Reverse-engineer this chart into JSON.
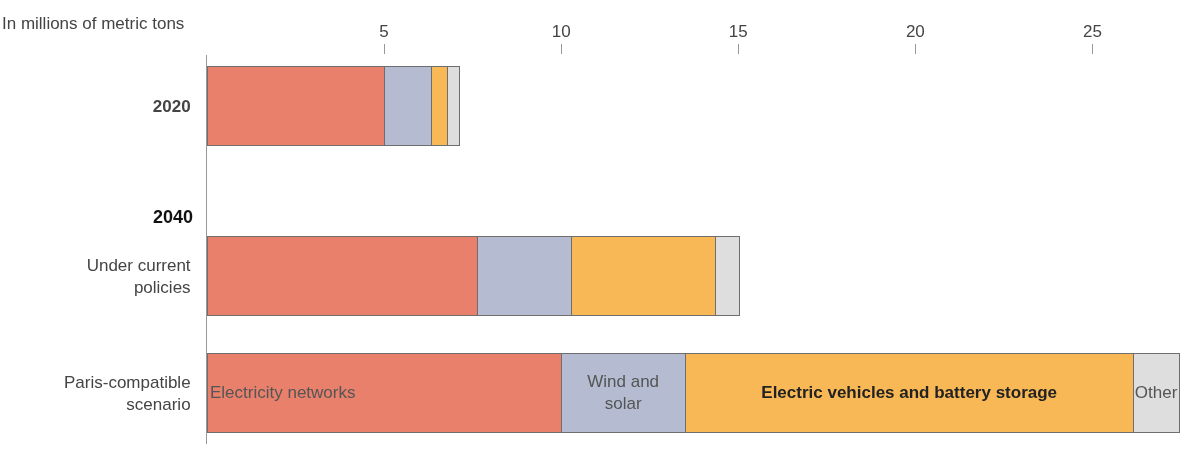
{
  "chart_data": {
    "type": "bar",
    "orientation": "horizontal",
    "stacked": true,
    "xlabel": "In millions of metric tons",
    "categories": [
      "2020",
      "Under current policies",
      "Paris-compatible scenario"
    ],
    "series": [
      {
        "name": "Electricity networks",
        "color": "#e8806c",
        "values": [
          5.0,
          7.65,
          10.0
        ]
      },
      {
        "name": "Wind and solar",
        "color": "#b5bcd1",
        "values": [
          1.35,
          2.65,
          3.5
        ]
      },
      {
        "name": "Electric vehicles and battery storage",
        "color": "#f9b856",
        "values": [
          0.45,
          4.05,
          12.65
        ]
      },
      {
        "name": "Other",
        "color": "#dedede",
        "values": [
          0.33,
          0.68,
          1.3
        ]
      }
    ],
    "annotations": [
      "2040"
    ],
    "xlim": [
      0,
      27.5
    ],
    "xticks": [
      5,
      10,
      15,
      20,
      25
    ],
    "legend": false
  }
}
